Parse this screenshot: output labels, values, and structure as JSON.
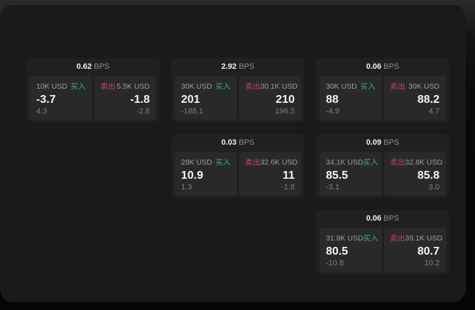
{
  "labels": {
    "bps_suffix": "BPS",
    "buy": "买入",
    "sell": "卖出"
  },
  "colors": {
    "window_bg": "#1a1a1a",
    "card_bg": "#202020",
    "panel_bg": "#292929",
    "buy_green": "#3fae63",
    "sell_red": "#c9455e"
  },
  "cards": [
    {
      "bps": "0.62",
      "buy": {
        "amount": "10K USD",
        "value": "-3.7",
        "delta": "4.3"
      },
      "sell": {
        "amount": "5.5K USD",
        "value": "-1.8",
        "delta": "-2.6"
      }
    },
    {
      "bps": "2.92",
      "buy": {
        "amount": "30K USD",
        "value": "201",
        "delta": "-188.1"
      },
      "sell": {
        "amount": "30.1K USD",
        "value": "210",
        "delta": "196.5"
      }
    },
    {
      "bps": "0.06",
      "buy": {
        "amount": "30K USD",
        "value": "88",
        "delta": "-4.9"
      },
      "sell": {
        "amount": "30K USD",
        "value": "88.2",
        "delta": "4.7"
      }
    },
    {
      "bps": "0.03",
      "buy": {
        "amount": "28K USD",
        "value": "10.9",
        "delta": "1.3"
      },
      "sell": {
        "amount": "32.6K USD",
        "value": "11",
        "delta": "-1.8"
      }
    },
    {
      "bps": "0.09",
      "buy": {
        "amount": "34.1K USD",
        "value": "85.5",
        "delta": "-3.1"
      },
      "sell": {
        "amount": "32.8K USD",
        "value": "85.8",
        "delta": "3.0"
      }
    },
    {
      "bps": "0.06",
      "buy": {
        "amount": "31.8K USD",
        "value": "80.5",
        "delta": "-10.8"
      },
      "sell": {
        "amount": "39.1K USD",
        "value": "80.7",
        "delta": "10.2"
      }
    }
  ]
}
